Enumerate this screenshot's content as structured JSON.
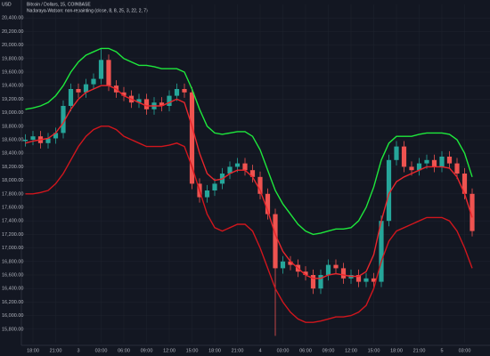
{
  "chart_data": {
    "type": "candlestick",
    "currency": "USD",
    "title": "Bitcoin / Dollars, 15, COINBASE",
    "subtitle": "Nadaraya-Watson: non-repainting (close, 8, 8, 25, 3, 22, 2, 7)",
    "up_color": "#26a69a",
    "down_color": "#ef5350",
    "grid": true,
    "ylim": [
      15600,
      20600
    ],
    "yticks": [
      {
        "value": 15800,
        "label": "15,800.00"
      },
      {
        "value": 16000,
        "label": "16,000.00"
      },
      {
        "value": 16200,
        "label": "16,200.00"
      },
      {
        "value": 16400,
        "label": "16,400.00"
      },
      {
        "value": 16600,
        "label": "16,600.00"
      },
      {
        "value": 16800,
        "label": "16,800.00"
      },
      {
        "value": 17000,
        "label": "17,000.00"
      },
      {
        "value": 17200,
        "label": "17,200.00"
      },
      {
        "value": 17400,
        "label": "17,400.00"
      },
      {
        "value": 17600,
        "label": "17,600.00"
      },
      {
        "value": 17800,
        "label": "17,800.00"
      },
      {
        "value": 18000,
        "label": "18,000.00"
      },
      {
        "value": 18200,
        "label": "18,200.00"
      },
      {
        "value": 18400,
        "label": "18,400.00"
      },
      {
        "value": 18600,
        "label": "18,600.00"
      },
      {
        "value": 18800,
        "label": "18,800.00"
      },
      {
        "value": 19000,
        "label": "19,000.00"
      },
      {
        "value": 19200,
        "label": "19,200.00"
      },
      {
        "value": 19400,
        "label": "19,400.00"
      },
      {
        "value": 19600,
        "label": "19,600.00"
      },
      {
        "value": 19800,
        "label": "19,800.00"
      },
      {
        "value": 20000,
        "label": "20,000.00"
      },
      {
        "value": 20200,
        "label": "20,200.00"
      },
      {
        "value": 20400,
        "label": "20,400.00"
      }
    ],
    "categories": [
      null,
      "18:00",
      null,
      null,
      "21:00",
      null,
      null,
      "3",
      null,
      null,
      "03:00",
      null,
      null,
      "06:00",
      null,
      null,
      "09:00",
      null,
      null,
      "12:00",
      null,
      null,
      "15:00",
      null,
      null,
      "18:00",
      null,
      null,
      "21:00",
      null,
      null,
      "4",
      null,
      null,
      "03:00",
      null,
      null,
      "06:00",
      null,
      null,
      "09:00",
      null,
      null,
      "12:00",
      null,
      null,
      "15:00",
      null,
      null,
      "18:00",
      null,
      null,
      "21:00",
      null,
      null,
      "5",
      null,
      null,
      "03:00",
      null
    ],
    "open": [
      18580,
      18600,
      18650,
      18550,
      18620,
      18700,
      19100,
      19350,
      19300,
      19420,
      19500,
      19780,
      19400,
      19300,
      19250,
      19150,
      19200,
      19050,
      19150,
      19100,
      19250,
      19350,
      19300,
      17950,
      17750,
      17850,
      17950,
      18100,
      18200,
      18250,
      18150,
      18050,
      17800,
      17500,
      16700,
      16800,
      16750,
      16650,
      16600,
      16400,
      16600,
      16750,
      16700,
      16550,
      16600,
      16500,
      16550,
      16500,
      17400,
      18300,
      18500,
      18200,
      18150,
      18250,
      18300,
      18200,
      18350,
      18250,
      18100,
      17800
    ],
    "high": [
      18680,
      18730,
      18730,
      18700,
      18780,
      19180,
      19430,
      19430,
      19500,
      19580,
      19950,
      19860,
      19480,
      19380,
      19330,
      19280,
      19280,
      19230,
      19230,
      19330,
      19430,
      19430,
      19380,
      18030,
      17930,
      18030,
      18180,
      18280,
      18330,
      18330,
      18230,
      18130,
      17880,
      17580,
      16880,
      16880,
      16830,
      16730,
      16680,
      16680,
      16830,
      16830,
      16780,
      16680,
      16680,
      16630,
      16630,
      17480,
      18380,
      18580,
      18580,
      18280,
      18330,
      18380,
      18380,
      18430,
      18430,
      18330,
      18180,
      17880
    ],
    "low": [
      18500,
      18520,
      18470,
      18470,
      18540,
      18620,
      19020,
      19220,
      19220,
      19340,
      19420,
      19320,
      19220,
      19170,
      19070,
      19070,
      18970,
      18970,
      19020,
      19020,
      19170,
      19220,
      17870,
      17670,
      17670,
      17770,
      17870,
      18020,
      18120,
      18070,
      17970,
      17720,
      17420,
      15700,
      16620,
      16670,
      16570,
      16520,
      16320,
      16320,
      16520,
      16620,
      16470,
      16470,
      16420,
      16420,
      16420,
      16420,
      17320,
      18220,
      18120,
      18070,
      18070,
      18170,
      18120,
      18120,
      18170,
      18020,
      17720,
      17170
    ],
    "close": [
      18600,
      18650,
      18550,
      18620,
      18700,
      19100,
      19350,
      19300,
      19420,
      19500,
      19780,
      19400,
      19300,
      19250,
      19150,
      19200,
      19050,
      19150,
      19100,
      19250,
      19350,
      19300,
      17950,
      17750,
      17850,
      17950,
      18100,
      18200,
      18250,
      18150,
      18050,
      17800,
      17500,
      16700,
      16800,
      16750,
      16650,
      16600,
      16400,
      16600,
      16750,
      16700,
      16550,
      16600,
      16500,
      16550,
      16500,
      17400,
      18300,
      18500,
      18200,
      18150,
      18250,
      18300,
      18200,
      18350,
      18250,
      18100,
      17800,
      17250
    ],
    "lines": [
      {
        "color": "#1ee83c",
        "values": [
          19050,
          19070,
          19100,
          19150,
          19250,
          19400,
          19600,
          19750,
          19850,
          19900,
          19950,
          19950,
          19900,
          19800,
          19750,
          19700,
          19700,
          19680,
          19650,
          19650,
          19650,
          19600,
          19350,
          19050,
          18800,
          18700,
          18680,
          18700,
          18720,
          18720,
          18650,
          18450,
          18150,
          17850,
          17650,
          17500,
          17350,
          17250,
          17200,
          17220,
          17250,
          17280,
          17280,
          17300,
          17400,
          17600,
          17900,
          18300,
          18550,
          18650,
          18650,
          18650,
          18680,
          18700,
          18700,
          18700,
          18680,
          18600,
          18400,
          18050
        ]
      },
      {
        "color": "#e8262c",
        "values": [
          18550,
          18580,
          18600,
          18620,
          18700,
          18850,
          19050,
          19200,
          19300,
          19350,
          19400,
          19400,
          19350,
          19250,
          19200,
          19150,
          19100,
          19100,
          19100,
          19150,
          19200,
          19150,
          18800,
          18400,
          18100,
          18000,
          18020,
          18100,
          18150,
          18150,
          18050,
          17850,
          17550,
          17200,
          16950,
          16800,
          16700,
          16600,
          16550,
          16550,
          16600,
          16620,
          16600,
          16580,
          16580,
          16650,
          16900,
          17400,
          17800,
          17980,
          18050,
          18100,
          18150,
          18200,
          18200,
          18200,
          18180,
          18050,
          17800,
          17450
        ]
      },
      {
        "color": "#d0161d",
        "values": [
          17800,
          17800,
          17820,
          17850,
          17950,
          18100,
          18300,
          18500,
          18650,
          18750,
          18800,
          18800,
          18750,
          18650,
          18600,
          18550,
          18500,
          18500,
          18500,
          18520,
          18550,
          18500,
          18200,
          17850,
          17500,
          17300,
          17250,
          17300,
          17350,
          17350,
          17250,
          17000,
          16700,
          16400,
          16200,
          16050,
          15950,
          15900,
          15900,
          15920,
          15950,
          15980,
          15980,
          16000,
          16050,
          16150,
          16400,
          16800,
          17100,
          17250,
          17300,
          17350,
          17400,
          17450,
          17450,
          17450,
          17400,
          17250,
          17000,
          16700
        ]
      }
    ]
  }
}
